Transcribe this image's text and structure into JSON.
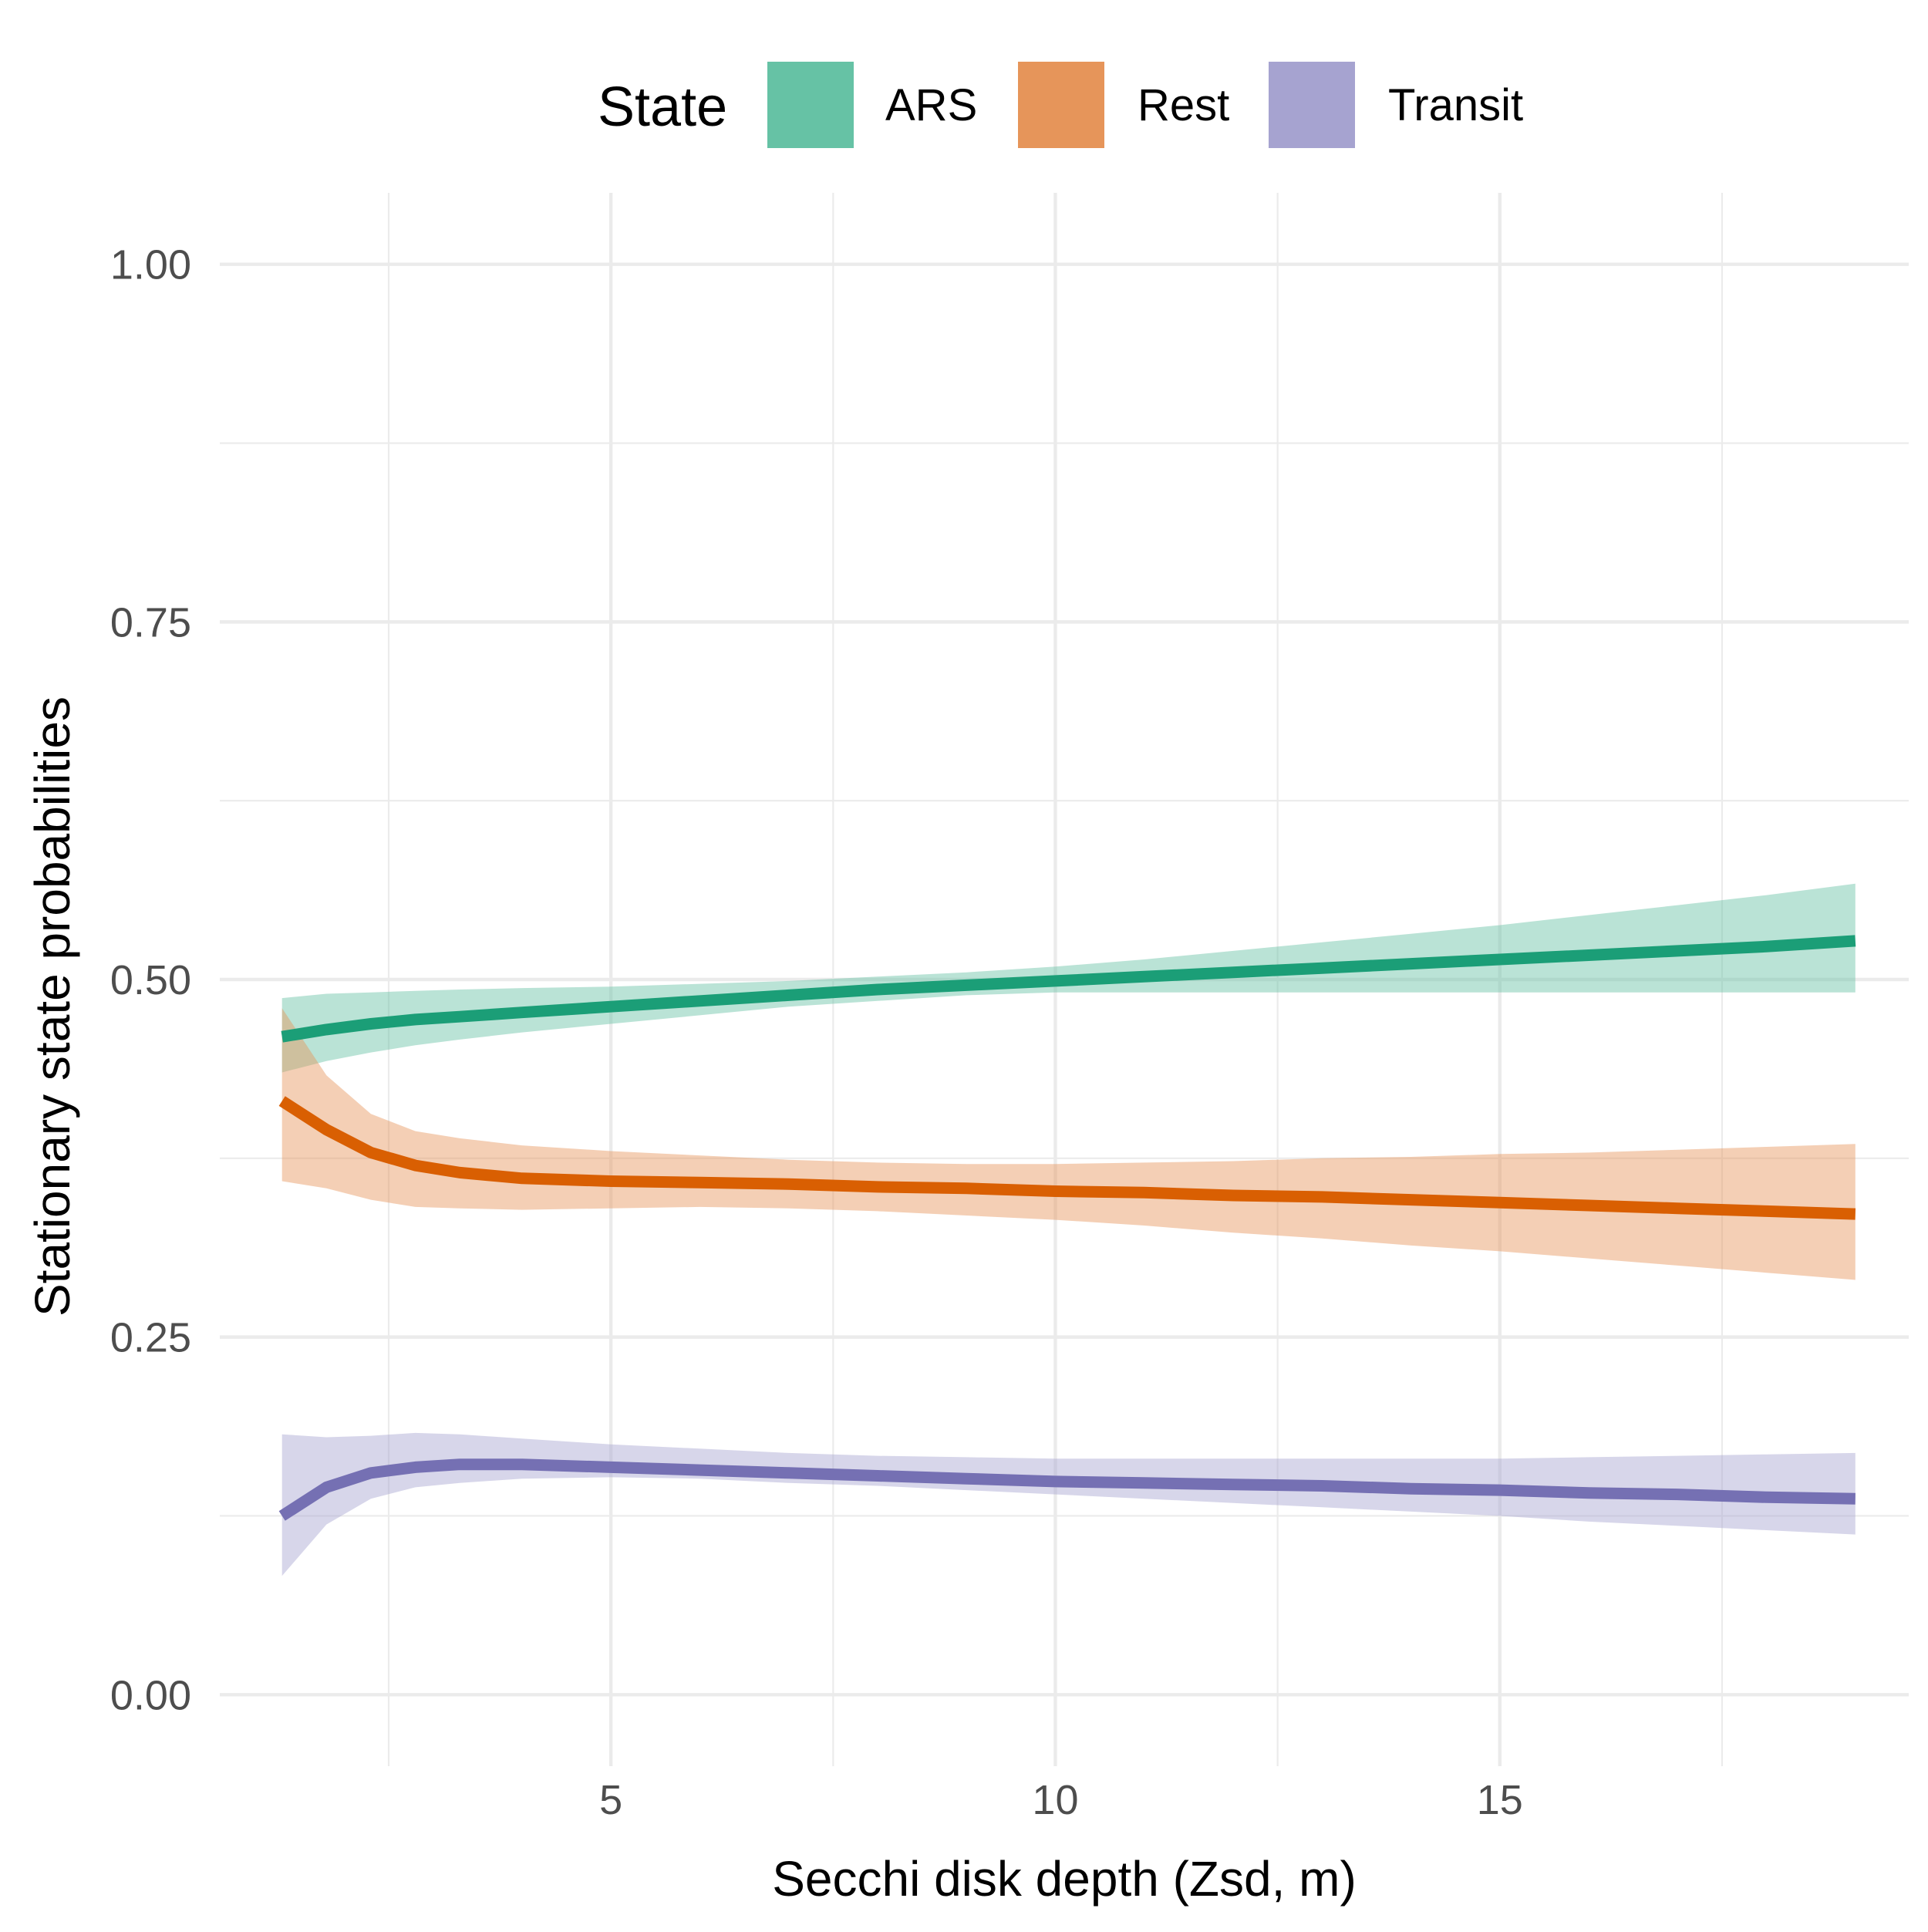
{
  "chart_data": {
    "type": "line",
    "xlabel": "Secchi disk depth (Zsd, m)",
    "ylabel": "Stationary state probabilities",
    "xlim": [
      0.6,
      19.6
    ],
    "ylim": [
      -0.05,
      1.05
    ],
    "x_ticks": [
      5,
      10,
      15
    ],
    "x_tick_labels": [
      "5",
      "10",
      "15"
    ],
    "x_minor_gridlines": [
      2.5,
      7.5,
      12.5,
      17.5
    ],
    "y_ticks": [
      0,
      0.25,
      0.5,
      0.75,
      1.0
    ],
    "y_tick_labels": [
      "0.00",
      "0.25",
      "0.50",
      "0.75",
      "1.00"
    ],
    "y_minor_gridlines": [
      0.125,
      0.375,
      0.625,
      0.875
    ],
    "grid": true,
    "legend": {
      "title": "State",
      "position": "top",
      "entries": [
        "ARS",
        "Rest",
        "Transit"
      ]
    },
    "x": [
      1.3,
      1.8,
      2.3,
      2.8,
      3.3,
      4.0,
      5.0,
      6.0,
      7.0,
      8.0,
      9.0,
      10.0,
      11.0,
      12.0,
      13.0,
      14.0,
      15.0,
      16.0,
      17.0,
      18.0,
      19.0
    ],
    "series": [
      {
        "name": "ARS",
        "color": "#1B9E77",
        "band_color": "#66C2A5",
        "values": [
          0.46,
          0.465,
          0.469,
          0.472,
          0.474,
          0.477,
          0.481,
          0.485,
          0.489,
          0.493,
          0.496,
          0.499,
          0.502,
          0.505,
          0.508,
          0.511,
          0.514,
          0.517,
          0.52,
          0.523,
          0.527
        ],
        "lower": [
          0.435,
          0.443,
          0.449,
          0.454,
          0.458,
          0.463,
          0.469,
          0.475,
          0.481,
          0.485,
          0.489,
          0.491,
          0.491,
          0.491,
          0.491,
          0.491,
          0.491,
          0.491,
          0.491,
          0.491,
          0.491
        ],
        "upper": [
          0.487,
          0.49,
          0.491,
          0.492,
          0.493,
          0.494,
          0.495,
          0.497,
          0.499,
          0.502,
          0.505,
          0.509,
          0.514,
          0.52,
          0.526,
          0.532,
          0.538,
          0.545,
          0.552,
          0.559,
          0.567
        ]
      },
      {
        "name": "Rest",
        "color": "#D95F02",
        "band_color": "#E6955A",
        "values": [
          0.415,
          0.395,
          0.379,
          0.37,
          0.365,
          0.361,
          0.359,
          0.358,
          0.357,
          0.355,
          0.354,
          0.352,
          0.351,
          0.349,
          0.348,
          0.346,
          0.344,
          0.342,
          0.34,
          0.338,
          0.336
        ],
        "lower": [
          0.359,
          0.354,
          0.346,
          0.341,
          0.34,
          0.339,
          0.34,
          0.341,
          0.34,
          0.338,
          0.335,
          0.332,
          0.328,
          0.323,
          0.319,
          0.314,
          0.31,
          0.305,
          0.3,
          0.295,
          0.29
        ],
        "upper": [
          0.48,
          0.433,
          0.406,
          0.394,
          0.389,
          0.384,
          0.38,
          0.377,
          0.374,
          0.372,
          0.371,
          0.371,
          0.372,
          0.373,
          0.375,
          0.376,
          0.378,
          0.379,
          0.381,
          0.383,
          0.385
        ]
      },
      {
        "name": "Transit",
        "color": "#7570B3",
        "band_color": "#A6A3D0",
        "values": [
          0.125,
          0.145,
          0.155,
          0.159,
          0.161,
          0.161,
          0.159,
          0.157,
          0.155,
          0.153,
          0.151,
          0.149,
          0.148,
          0.147,
          0.146,
          0.144,
          0.143,
          0.141,
          0.14,
          0.138,
          0.137
        ],
        "lower": [
          0.083,
          0.119,
          0.137,
          0.145,
          0.148,
          0.151,
          0.152,
          0.151,
          0.148,
          0.146,
          0.143,
          0.14,
          0.137,
          0.134,
          0.131,
          0.128,
          0.125,
          0.121,
          0.118,
          0.115,
          0.112
        ],
        "upper": [
          0.182,
          0.18,
          0.181,
          0.183,
          0.182,
          0.179,
          0.175,
          0.172,
          0.169,
          0.167,
          0.166,
          0.165,
          0.165,
          0.165,
          0.165,
          0.165,
          0.165,
          0.166,
          0.167,
          0.168,
          0.169
        ]
      }
    ]
  }
}
